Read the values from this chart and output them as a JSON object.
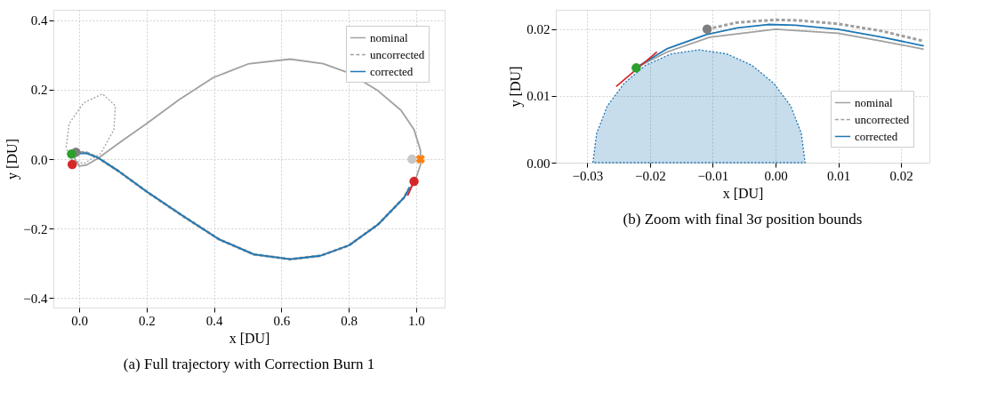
{
  "chart_data": [
    {
      "type": "line",
      "title": "(a)  Full trajectory with Correction Burn 1",
      "xlabel": "x [DU]",
      "ylabel": "y [DU]",
      "xlim": [
        -0.077,
        1.085
      ],
      "ylim": [
        -0.427,
        0.43
      ],
      "xticks": [
        {
          "value": 0,
          "label": "0.0"
        },
        {
          "value": 0.2,
          "label": "0.2"
        },
        {
          "value": 0.4,
          "label": "0.4"
        },
        {
          "value": 0.6,
          "label": "0.6"
        },
        {
          "value": 0.8,
          "label": "0.8"
        },
        {
          "value": 1.0,
          "label": "1.0"
        }
      ],
      "yticks": [
        {
          "value": -0.4,
          "label": "−0.4"
        },
        {
          "value": -0.2,
          "label": "−0.2"
        },
        {
          "value": 0,
          "label": "0.0"
        },
        {
          "value": 0.2,
          "label": "0.2"
        },
        {
          "value": 0.4,
          "label": "0.4"
        }
      ],
      "grid": true,
      "legend": "top right",
      "series": [
        {
          "type": "line",
          "color": "#a0a0a0",
          "line_style": "dotted",
          "x": [
            -0.039,
            -0.03,
            0.013,
            0.069,
            0.107,
            0.103,
            0.064,
            0.013,
            -0.026,
            -0.037
          ],
          "values": [
            0.034,
            0.103,
            0.162,
            0.188,
            0.154,
            0.085,
            0.017,
            -0.013,
            0.0,
            0.028
          ]
        },
        {
          "name": "nominal",
          "type": "line",
          "color": "#a0a0a0",
          "line_style": "solid",
          "x": [
            -0.012,
            -0.013,
            0.0,
            0.021,
            0.056,
            0.124,
            0.201,
            0.296,
            0.398,
            0.501,
            0.626,
            0.724,
            0.801,
            0.887,
            0.955,
            0.994,
            1.013,
            1.013,
            0.998,
            0.964,
            0.887,
            0.801,
            0.716,
            0.626,
            0.518,
            0.416,
            0.313,
            0.201,
            0.116,
            0.056,
            0.021,
            -0.007
          ],
          "values": [
            0.018,
            0.0,
            -0.02,
            -0.017,
            0.003,
            0.051,
            0.103,
            0.171,
            0.235,
            0.274,
            0.288,
            0.275,
            0.248,
            0.197,
            0.141,
            0.085,
            0.026,
            -0.017,
            -0.06,
            -0.111,
            -0.188,
            -0.248,
            -0.278,
            -0.288,
            -0.274,
            -0.231,
            -0.167,
            -0.094,
            -0.034,
            0.004,
            0.019,
            0.02
          ]
        },
        {
          "name": "uncorrected",
          "type": "line",
          "color": "#a0a0a0",
          "line_style": "dashed",
          "x": [
            0.981,
            0.964,
            0.887,
            0.801,
            0.716,
            0.626,
            0.518,
            0.416,
            0.313,
            0.201,
            0.116,
            0.056,
            0.021,
            -0.01
          ],
          "values": [
            -0.081,
            -0.111,
            -0.188,
            -0.248,
            -0.278,
            -0.288,
            -0.274,
            -0.231,
            -0.167,
            -0.094,
            -0.034,
            0.004,
            0.019,
            0.02
          ]
        },
        {
          "name": "corrected",
          "type": "line",
          "color": "#1f77b4",
          "line_style": "solid",
          "x": [
            0.981,
            0.964,
            0.887,
            0.801,
            0.716,
            0.626,
            0.518,
            0.416,
            0.313,
            0.201,
            0.116,
            0.056,
            0.021,
            -0.023
          ],
          "values": [
            -0.081,
            -0.111,
            -0.188,
            -0.248,
            -0.278,
            -0.288,
            -0.274,
            -0.231,
            -0.167,
            -0.094,
            -0.034,
            0.004,
            0.017,
            0.015
          ]
        },
        {
          "type": "line",
          "color": "#d62728",
          "line_style": "solid",
          "x": [
            0.994,
            0.975
          ],
          "values": [
            -0.064,
            -0.105
          ]
        },
        {
          "type": "scatter",
          "color": "#d62728",
          "marker": "circle",
          "x": [
            -0.021,
            0.994
          ],
          "values": [
            -0.015,
            -0.064
          ]
        },
        {
          "type": "scatter",
          "color": "#c8c8c8",
          "marker": "circle",
          "x": [
            0.988
          ],
          "values": [
            0.0
          ]
        },
        {
          "type": "scatter",
          "color": "#ff7f0e",
          "marker": "cross",
          "x": [
            1.013
          ],
          "values": [
            0.0
          ]
        },
        {
          "type": "scatter",
          "color": "#7f7f7f",
          "marker": "circle",
          "x": [
            -0.01
          ],
          "values": [
            0.02
          ]
        },
        {
          "type": "scatter",
          "color": "#2ca02c",
          "marker": "circle",
          "x": [
            -0.023
          ],
          "values": [
            0.015
          ]
        }
      ]
    },
    {
      "type": "line",
      "title": "(b)  Zoom with final 3σ position bounds",
      "xlabel": "x [DU]",
      "ylabel": "y [DU]",
      "xlim": [
        -0.035,
        0.0245
      ],
      "ylim": [
        0,
        0.0229
      ],
      "xticks": [
        {
          "value": -0.03,
          "label": "−0.03"
        },
        {
          "value": -0.02,
          "label": "−0.02"
        },
        {
          "value": -0.01,
          "label": "−0.01"
        },
        {
          "value": 0,
          "label": "0.00"
        },
        {
          "value": 0.01,
          "label": "0.01"
        },
        {
          "value": 0.02,
          "label": "0.02"
        }
      ],
      "yticks": [
        {
          "value": 0,
          "label": "0.00"
        },
        {
          "value": 0.01,
          "label": "0.01"
        },
        {
          "value": 0.02,
          "label": "0.02"
        }
      ],
      "grid": true,
      "legend": "bottom right",
      "series": [
        {
          "type": "area",
          "color": "#1f77b4",
          "line_style": "dotted",
          "x": [
            -0.0291,
            -0.0285,
            -0.0268,
            -0.0241,
            -0.0207,
            -0.0166,
            -0.0122,
            -0.0078,
            -0.0038,
            -0.0003,
            0.0024,
            0.0041,
            0.0047
          ],
          "values": [
            0.0,
            0.0044,
            0.0085,
            0.0119,
            0.0146,
            0.0163,
            0.0169,
            0.0163,
            0.0146,
            0.0119,
            0.0085,
            0.0044,
            0.0
          ]
        },
        {
          "name": "nominal",
          "type": "line",
          "color": "#a0a0a0",
          "line_style": "solid",
          "x": [
            -0.0221,
            -0.0172,
            -0.0105,
            0.0,
            0.0099,
            0.017,
            0.0236
          ],
          "values": [
            0.0143,
            0.0166,
            0.0188,
            0.02,
            0.0194,
            0.0182,
            0.017
          ]
        },
        {
          "name": "uncorrected",
          "type": "line",
          "color": "#a0a0a0",
          "line_style": "dashed",
          "x": [
            -0.0109,
            -0.0061,
            0.0,
            0.0037,
            0.0099,
            0.017,
            0.0236
          ],
          "values": [
            0.02,
            0.021,
            0.0214,
            0.0213,
            0.0208,
            0.0197,
            0.0182
          ]
        },
        {
          "name": "corrected",
          "type": "line",
          "color": "#1f77b4",
          "line_style": "solid",
          "x": [
            -0.0221,
            -0.0172,
            -0.011,
            -0.0061,
            -0.0012,
            0.0032,
            0.0099,
            0.017,
            0.0236
          ],
          "values": [
            0.0143,
            0.0171,
            0.0192,
            0.0202,
            0.0207,
            0.0206,
            0.02,
            0.0188,
            0.0175
          ]
        },
        {
          "type": "line",
          "color": "#d62728",
          "line_style": "solid",
          "x": [
            -0.0254,
            -0.0189
          ],
          "values": [
            0.0114,
            0.0166
          ]
        },
        {
          "type": "scatter",
          "color": "#7f7f7f",
          "marker": "circle",
          "x": [
            -0.0109
          ],
          "values": [
            0.02
          ]
        },
        {
          "type": "scatter",
          "color": "#2ca02c",
          "marker": "circle",
          "x": [
            -0.0222
          ],
          "values": [
            0.0142
          ]
        }
      ]
    }
  ]
}
